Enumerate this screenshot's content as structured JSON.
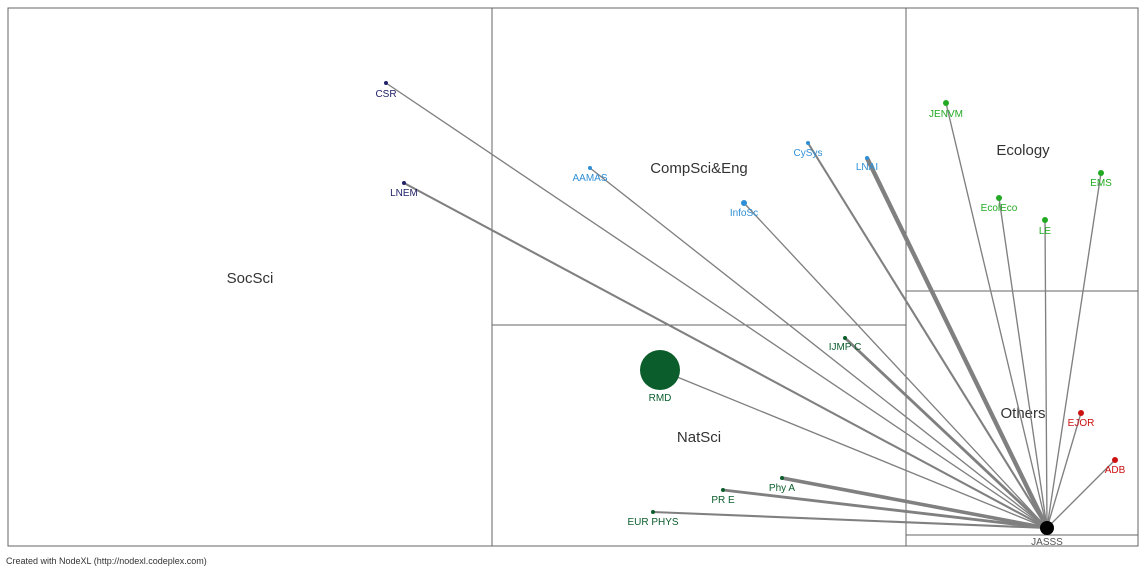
{
  "regions": [
    {
      "id": "socsci",
      "label": "SocSci"
    },
    {
      "id": "compsci",
      "label": "CompSci&Eng"
    },
    {
      "id": "ecology",
      "label": "Ecology"
    },
    {
      "id": "natsci",
      "label": "NatSci"
    },
    {
      "id": "others",
      "label": "Others"
    }
  ],
  "nodes": [
    {
      "id": "CSR",
      "label": "CSR",
      "color": "#22226a",
      "size": "small"
    },
    {
      "id": "LNEM",
      "label": "LNEM",
      "color": "#22226a",
      "size": "small"
    },
    {
      "id": "AAMAS",
      "label": "AAMAS",
      "color": "#2f8fd6",
      "size": "small"
    },
    {
      "id": "CySys",
      "label": "CySys",
      "color": "#2f8fd6",
      "size": "small"
    },
    {
      "id": "LNAI",
      "label": "LNAI",
      "color": "#2f8fd6",
      "size": "small"
    },
    {
      "id": "InfoSc",
      "label": "InfoSc",
      "color": "#2f8fd6",
      "size": "medium"
    },
    {
      "id": "JENVM",
      "label": "JENVM",
      "color": "#22aa22",
      "size": "medium"
    },
    {
      "id": "EMS",
      "label": "EMS",
      "color": "#22aa22",
      "size": "medium"
    },
    {
      "id": "EcolEco",
      "label": "EcolEco",
      "color": "#22aa22",
      "size": "medium"
    },
    {
      "id": "LE",
      "label": "LE",
      "color": "#22aa22",
      "size": "medium"
    },
    {
      "id": "IJMPC",
      "label": "IJMP C",
      "color": "#0b5e2c",
      "size": "small"
    },
    {
      "id": "RMD",
      "label": "RMD",
      "color": "#0b5e2c",
      "size": "large"
    },
    {
      "id": "PhyA",
      "label": "Phy A",
      "color": "#0b5e2c",
      "size": "small"
    },
    {
      "id": "PRE",
      "label": "PR E",
      "color": "#0b5e2c",
      "size": "small"
    },
    {
      "id": "EURPHYS",
      "label": "EUR PHYS",
      "color": "#0b5e2c",
      "size": "small"
    },
    {
      "id": "EJOR",
      "label": "EJOR",
      "color": "#cc1111",
      "size": "medium"
    },
    {
      "id": "ADB",
      "label": "ADB",
      "color": "#cc1111",
      "size": "medium"
    },
    {
      "id": "JASSS",
      "label": "JASSS",
      "color": "#000000",
      "size": "hub"
    }
  ],
  "edges": [
    {
      "from": "CSR",
      "to": "JASSS",
      "weight": 1
    },
    {
      "from": "LNEM",
      "to": "JASSS",
      "weight": 2
    },
    {
      "from": "AAMAS",
      "to": "JASSS",
      "weight": 1
    },
    {
      "from": "CySys",
      "to": "JASSS",
      "weight": 2
    },
    {
      "from": "LNAI",
      "to": "JASSS",
      "weight": 5
    },
    {
      "from": "InfoSc",
      "to": "JASSS",
      "weight": 1
    },
    {
      "from": "JENVM",
      "to": "JASSS",
      "weight": 1
    },
    {
      "from": "EMS",
      "to": "JASSS",
      "weight": 1
    },
    {
      "from": "EcolEco",
      "to": "JASSS",
      "weight": 1
    },
    {
      "from": "LE",
      "to": "JASSS",
      "weight": 1
    },
    {
      "from": "IJMPC",
      "to": "JASSS",
      "weight": 3
    },
    {
      "from": "RMD",
      "to": "JASSS",
      "weight": 1
    },
    {
      "from": "PhyA",
      "to": "JASSS",
      "weight": 4
    },
    {
      "from": "PRE",
      "to": "JASSS",
      "weight": 3
    },
    {
      "from": "EURPHYS",
      "to": "JASSS",
      "weight": 2
    },
    {
      "from": "EJOR",
      "to": "JASSS",
      "weight": 1
    },
    {
      "from": "ADB",
      "to": "JASSS",
      "weight": 1
    }
  ],
  "footer": "Created with NodeXL (http://nodexl.codeplex.com)"
}
